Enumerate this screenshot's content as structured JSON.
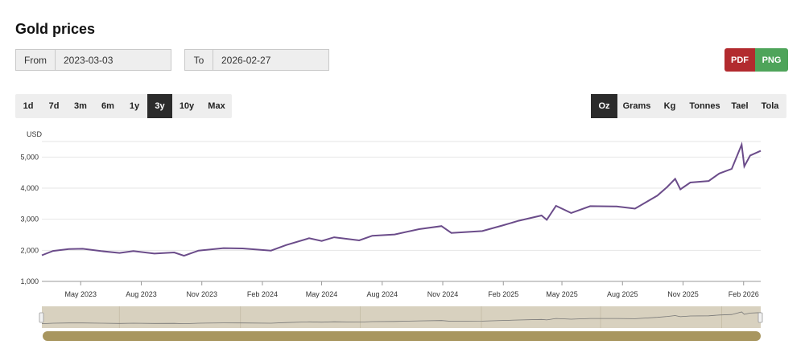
{
  "page": {
    "title": "Gold prices"
  },
  "date_range": {
    "from_label": "From",
    "from_value": "2023-03-03",
    "to_label": "To",
    "to_value": "2026-02-27"
  },
  "export": {
    "pdf_label": "PDF",
    "png_label": "PNG",
    "pdf_color": "#b22a2e",
    "png_color": "#4ea45a"
  },
  "range_buttons": [
    {
      "label": "1d",
      "active": false
    },
    {
      "label": "7d",
      "active": false
    },
    {
      "label": "3m",
      "active": false
    },
    {
      "label": "6m",
      "active": false
    },
    {
      "label": "1y",
      "active": false
    },
    {
      "label": "3y",
      "active": true
    },
    {
      "label": "10y",
      "active": false
    },
    {
      "label": "Max",
      "active": false
    }
  ],
  "unit_buttons": [
    {
      "label": "Oz",
      "active": true
    },
    {
      "label": "Grams",
      "active": false
    },
    {
      "label": "Kg",
      "active": false
    },
    {
      "label": "Tonnes",
      "active": false
    },
    {
      "label": "Tael",
      "active": false
    },
    {
      "label": "Tola",
      "active": false
    }
  ],
  "chart_data": {
    "type": "line",
    "title": "",
    "ylabel": "USD",
    "xlabel": "",
    "ylim": [
      1000,
      5500
    ],
    "xlim": [
      "2023-03-03",
      "2026-02-27"
    ],
    "y_ticks": [
      1000,
      2000,
      3000,
      4000,
      5000
    ],
    "y_tick_labels": [
      "1,000",
      "2,000",
      "3,000",
      "4,000",
      "5,000"
    ],
    "x_ticks": [
      "2023-05-01",
      "2023-08-01",
      "2023-11-01",
      "2024-02-01",
      "2024-05-01",
      "2024-08-01",
      "2024-11-01",
      "2025-02-01",
      "2025-05-01",
      "2025-08-01",
      "2025-11-01",
      "2026-02-01"
    ],
    "x_tick_labels": [
      "May 2023",
      "Aug 2023",
      "Nov 2023",
      "Feb 2024",
      "May 2024",
      "Aug 2024",
      "Nov 2024",
      "Feb 2025",
      "May 2025",
      "Aug 2025",
      "Nov 2025",
      "Feb 2026"
    ],
    "grid": true,
    "line_color": "#6b4c8a",
    "navigator": true,
    "series": [
      {
        "x": [
          "2023-03-03",
          "2023-03-20",
          "2023-04-13",
          "2023-05-04",
          "2023-06-01",
          "2023-06-29",
          "2023-07-20",
          "2023-08-21",
          "2023-09-20",
          "2023-10-05",
          "2023-10-27",
          "2023-12-04",
          "2024-01-02",
          "2024-02-14",
          "2024-03-08",
          "2024-04-12",
          "2024-05-01",
          "2024-05-20",
          "2024-06-27",
          "2024-07-17",
          "2024-08-20",
          "2024-09-26",
          "2024-10-30",
          "2024-11-14",
          "2024-12-31",
          "2025-01-31",
          "2025-02-24",
          "2025-03-31",
          "2025-04-08",
          "2025-04-22",
          "2025-05-15",
          "2025-06-13",
          "2025-07-23",
          "2025-08-20",
          "2025-09-23",
          "2025-10-08",
          "2025-10-20",
          "2025-10-28",
          "2025-11-12",
          "2025-12-10",
          "2025-12-26",
          "2026-01-14",
          "2026-01-29",
          "2026-02-02",
          "2026-02-11",
          "2026-02-27"
        ],
        "y": [
          1840,
          1980,
          2040,
          2050,
          1975,
          1915,
          1975,
          1895,
          1930,
          1825,
          1990,
          2070,
          2060,
          1990,
          2170,
          2390,
          2300,
          2420,
          2320,
          2470,
          2510,
          2680,
          2780,
          2560,
          2620,
          2800,
          2950,
          3120,
          2980,
          3430,
          3200,
          3420,
          3410,
          3340,
          3760,
          4040,
          4300,
          3960,
          4180,
          4230,
          4470,
          4620,
          5400,
          4700,
          5050,
          5200
        ]
      }
    ]
  }
}
